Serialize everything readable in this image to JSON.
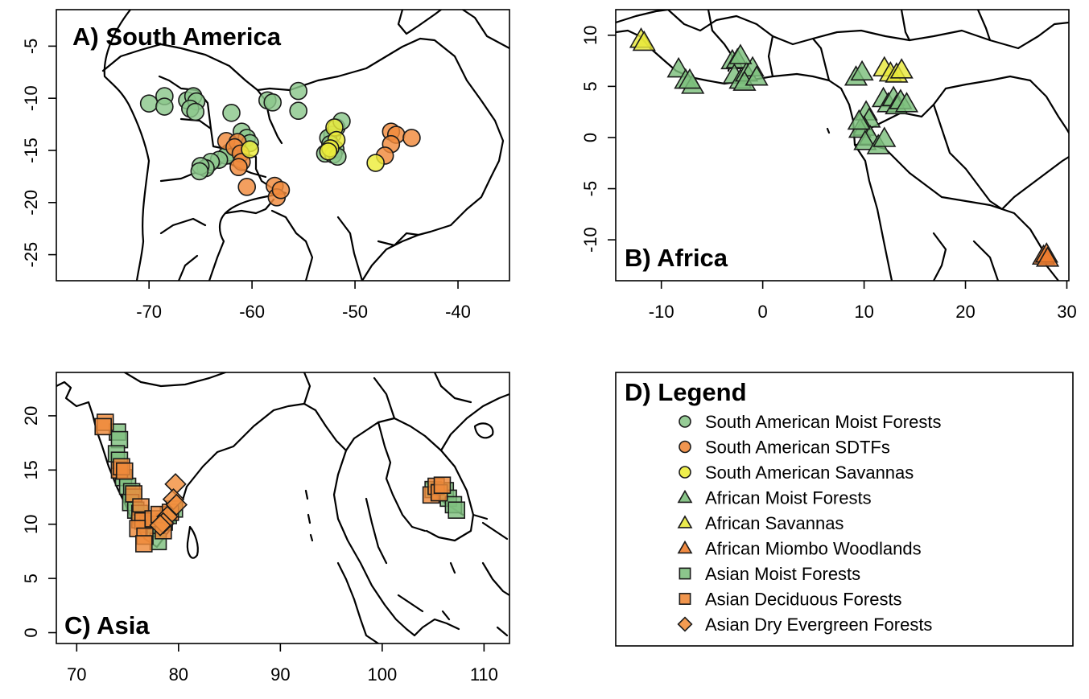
{
  "colors": {
    "sa_moist": "#8bc78b",
    "sa_sdtf": "#f08a3c",
    "sa_savanna": "#eded3a",
    "af_moist": "#7cbf7c",
    "af_savanna": "#e8e83a",
    "af_miombo": "#ee7d2e",
    "as_moist": "#7fc07f",
    "as_decid": "#ee8a3a",
    "as_dry": "#f3903e"
  },
  "panels": {
    "south_america": {
      "title": "A) South America"
    },
    "africa": {
      "title": "B) Africa"
    },
    "asia": {
      "title": "C) Asia"
    }
  },
  "legend": {
    "title": "D) Legend",
    "items": [
      {
        "label": "South American Moist Forests",
        "shape": "circle",
        "color": "sa_moist"
      },
      {
        "label": "South American SDTFs",
        "shape": "circle",
        "color": "sa_sdtf"
      },
      {
        "label": "South American Savannas",
        "shape": "circle",
        "color": "sa_savanna"
      },
      {
        "label": "African Moist Forests",
        "shape": "triangle",
        "color": "af_moist"
      },
      {
        "label": "African Savannas",
        "shape": "triangle",
        "color": "af_savanna"
      },
      {
        "label": "African Miombo Woodlands",
        "shape": "triangle",
        "color": "af_miombo"
      },
      {
        "label": "Asian Moist Forests",
        "shape": "square",
        "color": "as_moist"
      },
      {
        "label": "Asian Deciduous Forests",
        "shape": "square",
        "color": "as_decid"
      },
      {
        "label": "Asian Dry Evergreen Forests",
        "shape": "diamond",
        "color": "as_dry"
      }
    ]
  },
  "chart_data": [
    {
      "type": "scatter",
      "title": "A) South America",
      "xlim": [
        -79,
        -35
      ],
      "ylim": [
        -27.5,
        -1.5
      ],
      "xticks": [
        "-70",
        "-60",
        "-50",
        "-40"
      ],
      "yticks": [
        "-5",
        "-10",
        "-15",
        "-20",
        "-25"
      ],
      "series": [
        {
          "name": "South American Moist Forests",
          "shape": "circle",
          "color": "sa_moist",
          "points": [
            [
              -70,
              -10.5
            ],
            [
              -68.5,
              -9.8
            ],
            [
              -68.5,
              -10.8
            ],
            [
              -66.3,
              -10.2
            ],
            [
              -65.7,
              -9.8
            ],
            [
              -65.4,
              -10.3
            ],
            [
              -66,
              -11
            ],
            [
              -65.5,
              -11.3
            ],
            [
              -62,
              -11.4
            ],
            [
              -58.5,
              -10.2
            ],
            [
              -58,
              -10.4
            ],
            [
              -55.5,
              -9.3
            ],
            [
              -55.5,
              -11.2
            ],
            [
              -61,
              -13.2
            ],
            [
              -60.5,
              -13.8
            ],
            [
              -60.2,
              -14.3
            ],
            [
              -62.2,
              -15.2
            ],
            [
              -62.5,
              -15.5
            ],
            [
              -63.2,
              -15.9
            ],
            [
              -64,
              -16.1
            ],
            [
              -64.5,
              -16.7
            ],
            [
              -65,
              -16.5
            ],
            [
              -65.1,
              -17
            ],
            [
              -52.2,
              -13.5
            ],
            [
              -52.6,
              -13.8
            ],
            [
              -51.8,
              -12.8
            ],
            [
              -51.3,
              -12.2
            ],
            [
              -52.4,
              -14.4
            ],
            [
              -51.9,
              -14.9
            ],
            [
              -52.9,
              -15.3
            ],
            [
              -52.1,
              -15.4
            ],
            [
              -51.7,
              -15.6
            ]
          ]
        },
        {
          "name": "South American SDTFs",
          "shape": "circle",
          "color": "sa_sdtf",
          "points": [
            [
              -62.5,
              -14.1
            ],
            [
              -61.4,
              -14.2
            ],
            [
              -61.7,
              -14.7
            ],
            [
              -61.1,
              -15.3
            ],
            [
              -61,
              -16.1
            ],
            [
              -61.3,
              -16.6
            ],
            [
              -60.5,
              -18.5
            ],
            [
              -57.8,
              -18.4
            ],
            [
              -57.6,
              -19.5
            ],
            [
              -57.2,
              -18.8
            ],
            [
              -46.5,
              -13.2
            ],
            [
              -46,
              -13.5
            ],
            [
              -46.5,
              -14.4
            ],
            [
              -44.5,
              -13.8
            ],
            [
              -47.1,
              -15.5
            ]
          ]
        },
        {
          "name": "South American Savannas",
          "shape": "circle",
          "color": "sa_savanna",
          "points": [
            [
              -60.2,
              -14.9
            ],
            [
              -52,
              -12.8
            ],
            [
              -51.8,
              -14
            ],
            [
              -52.4,
              -14.8
            ],
            [
              -52.6,
              -15.1
            ],
            [
              -48,
              -16.2
            ]
          ]
        }
      ]
    },
    {
      "type": "scatter",
      "title": "B) Africa",
      "xlim": [
        -14.5,
        30.2
      ],
      "ylim": [
        -14,
        12.5
      ],
      "xticks": [
        "-10",
        "0",
        "10",
        "20",
        "30"
      ],
      "yticks": [
        "10",
        "5",
        "0",
        "-5",
        "-10"
      ],
      "series": [
        {
          "name": "African Moist Forests",
          "shape": "triangle",
          "color": "af_moist",
          "points": [
            [
              -8.3,
              6.7
            ],
            [
              -7.6,
              5.6
            ],
            [
              -6.9,
              5.1
            ],
            [
              -7.2,
              5.6
            ],
            [
              -3,
              7.5
            ],
            [
              -2.5,
              7.6
            ],
            [
              -2.8,
              6.1
            ],
            [
              -2.2,
              5.6
            ],
            [
              -1.6,
              6.3
            ],
            [
              -1,
              6.8
            ],
            [
              -1.8,
              5.4
            ],
            [
              -0.6,
              5.9
            ],
            [
              -2.2,
              8
            ],
            [
              9.2,
              5.9
            ],
            [
              9.8,
              6.4
            ],
            [
              10.2,
              2.5
            ],
            [
              10.5,
              1.8
            ],
            [
              10,
              1
            ],
            [
              9.6,
              0.8
            ],
            [
              10.6,
              0.1
            ],
            [
              10.1,
              -0.4
            ],
            [
              11.4,
              -0.8
            ],
            [
              12,
              -0.1
            ],
            [
              9.5,
              1.6
            ],
            [
              11.9,
              3.8
            ],
            [
              12.4,
              3.3
            ],
            [
              12.9,
              3.9
            ],
            [
              13.2,
              3.1
            ],
            [
              13.6,
              3.6
            ],
            [
              14.2,
              3.3
            ]
          ]
        },
        {
          "name": "African Savannas",
          "shape": "triangle",
          "color": "af_savanna",
          "points": [
            [
              -12,
              9.6
            ],
            [
              -11.7,
              9.3
            ],
            [
              12,
              6.8
            ],
            [
              12.6,
              6.3
            ],
            [
              13.2,
              6.2
            ],
            [
              13.7,
              6.6
            ]
          ]
        },
        {
          "name": "African Miombo Woodlands",
          "shape": "triangle",
          "color": "af_miombo",
          "points": [
            [
              27.7,
              -11.6
            ],
            [
              28,
              -11.4
            ],
            [
              28.1,
              -11.8
            ]
          ]
        }
      ]
    },
    {
      "type": "scatter",
      "title": "C) Asia",
      "xlim": [
        68,
        112.5
      ],
      "ylim": [
        -1,
        24
      ],
      "xticks": [
        "70",
        "80",
        "90",
        "100",
        "110"
      ],
      "yticks": [
        "0",
        "5",
        "10",
        "15",
        "20"
      ],
      "series": [
        {
          "name": "Asian Moist Forests",
          "shape": "square",
          "color": "as_moist",
          "points": [
            [
              74,
              18.5
            ],
            [
              74.2,
              17.8
            ],
            [
              73.9,
              16.5
            ],
            [
              74.2,
              15.9
            ],
            [
              74.6,
              14.3
            ],
            [
              75,
              13.5
            ],
            [
              75.4,
              13
            ],
            [
              75.6,
              12.5
            ],
            [
              75.3,
              12
            ],
            [
              75.8,
              11.3
            ],
            [
              76.2,
              11
            ],
            [
              77,
              10
            ],
            [
              77.7,
              9.6
            ],
            [
              78,
              8.4
            ],
            [
              78.6,
              10.2
            ],
            [
              79,
              10.8
            ],
            [
              79.6,
              11.4
            ],
            [
              105,
              13.2
            ],
            [
              105.6,
              13
            ],
            [
              106.2,
              13.1
            ],
            [
              106.5,
              12.4
            ],
            [
              107,
              11.8
            ],
            [
              107.3,
              11.3
            ]
          ]
        },
        {
          "name": "Asian Deciduous Forests",
          "shape": "square",
          "color": "as_decid",
          "points": [
            [
              72.8,
              19.4
            ],
            [
              72.6,
              19
            ],
            [
              74.2,
              15
            ],
            [
              74.4,
              15.3
            ],
            [
              74.7,
              14.9
            ],
            [
              75.6,
              12.8
            ],
            [
              76.3,
              11.6
            ],
            [
              76.2,
              10.4
            ],
            [
              76.5,
              10.3
            ],
            [
              76,
              9.6
            ],
            [
              76.7,
              8.9
            ],
            [
              76.6,
              8.2
            ],
            [
              77.5,
              10.5
            ],
            [
              78.1,
              10.9
            ],
            [
              78.5,
              9.4
            ],
            [
              79.2,
              11.1
            ],
            [
              104.8,
              12.7
            ],
            [
              105.3,
              13.5
            ],
            [
              105.6,
              12.9
            ],
            [
              105.9,
              13.6
            ]
          ]
        },
        {
          "name": "Asian Dry Evergreen Forests",
          "shape": "diamond",
          "color": "as_dry",
          "points": [
            [
              79.7,
              13.7
            ],
            [
              79.5,
              12.3
            ],
            [
              79.8,
              11.8
            ],
            [
              78.9,
              10.7
            ],
            [
              78.5,
              10.1
            ],
            [
              78.2,
              9.9
            ]
          ]
        }
      ]
    }
  ]
}
